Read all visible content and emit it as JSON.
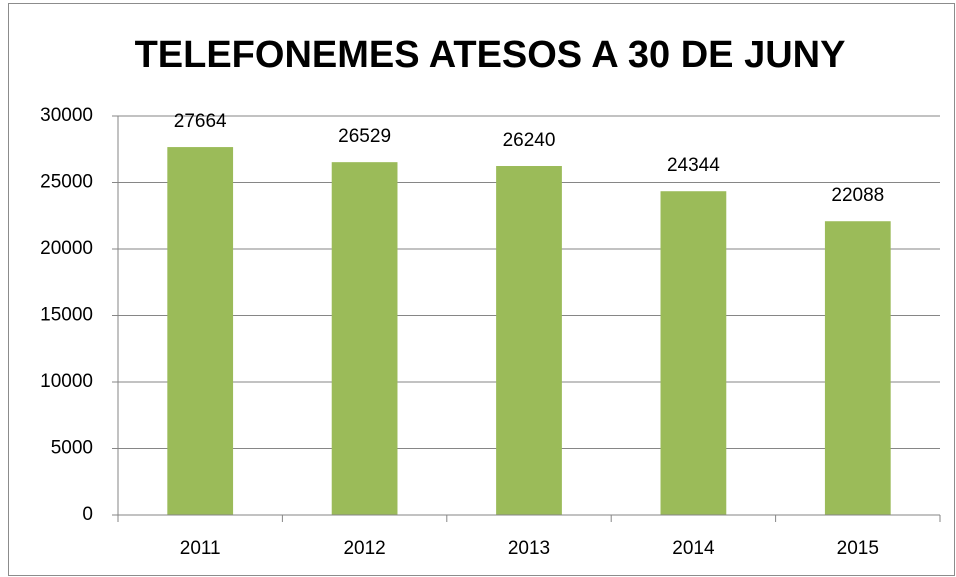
{
  "chart_data": {
    "type": "bar",
    "title": "TELEFONEMES ATESOS A 30 DE JUNY",
    "categories": [
      "2011",
      "2012",
      "2013",
      "2014",
      "2015"
    ],
    "values": [
      27664,
      26529,
      26240,
      24344,
      22088
    ],
    "color": "#9bbb59",
    "ylim": [
      0,
      30000
    ],
    "yticks": [
      0,
      5000,
      10000,
      15000,
      20000,
      25000,
      30000
    ],
    "grid": true
  }
}
